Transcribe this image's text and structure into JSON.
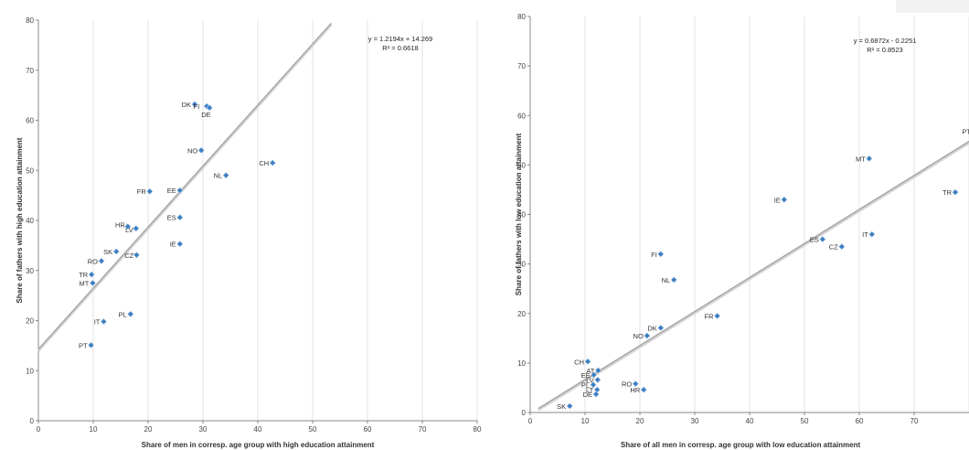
{
  "chart_data": [
    {
      "type": "scatter",
      "title": "",
      "xlabel": "Share of men in corresp. age group with high  education attainment",
      "ylabel": "Share of fathers with high education attainment",
      "xlim": [
        0,
        80
      ],
      "ylim": [
        0,
        80
      ],
      "xticks": [
        0,
        10,
        20,
        30,
        40,
        50,
        60,
        70,
        80
      ],
      "yticks": [
        0,
        10,
        20,
        30,
        40,
        50,
        60,
        70,
        80
      ],
      "grid": "x-vertical",
      "trendline": {
        "slope": 1.2194,
        "intercept": 14.269,
        "x_range": [
          0,
          53.4
        ]
      },
      "equation_lines": [
        "y = 1.2194x + 14.269",
        "R² = 0.6618"
      ],
      "marker_color": "#3b7fc4",
      "points": [
        {
          "label": "DK",
          "x": 28.5,
          "y": 63.2
        },
        {
          "label": "FI",
          "x": 30.7,
          "y": 62.8
        },
        {
          "label": "DE",
          "x": 31.2,
          "y": 62.5
        },
        {
          "label": "NO",
          "x": 29.7,
          "y": 54.0
        },
        {
          "label": "CH",
          "x": 42.7,
          "y": 51.5
        },
        {
          "label": "NL",
          "x": 34.2,
          "y": 49.0
        },
        {
          "label": "FR",
          "x": 20.3,
          "y": 45.8
        },
        {
          "label": "EE",
          "x": 25.8,
          "y": 46.0
        },
        {
          "label": "ES",
          "x": 25.8,
          "y": 40.6
        },
        {
          "label": "HR",
          "x": 16.3,
          "y": 38.8
        },
        {
          "label": "LV",
          "x": 17.8,
          "y": 38.4
        },
        {
          "label": "IE",
          "x": 25.8,
          "y": 35.3
        },
        {
          "label": "SK",
          "x": 14.2,
          "y": 33.8
        },
        {
          "label": "CZ",
          "x": 17.9,
          "y": 33.1
        },
        {
          "label": "RO",
          "x": 11.5,
          "y": 31.9
        },
        {
          "label": "TR",
          "x": 9.7,
          "y": 29.2
        },
        {
          "label": "MT",
          "x": 9.9,
          "y": 27.5
        },
        {
          "label": "PL",
          "x": 16.8,
          "y": 21.3
        },
        {
          "label": "IT",
          "x": 11.9,
          "y": 19.8
        },
        {
          "label": "PT",
          "x": 9.6,
          "y": 15.1
        }
      ]
    },
    {
      "type": "scatter",
      "title": "",
      "xlabel": "Share of all men in corresp. age group with low education attainment",
      "ylabel": "Share of fathers with low education attainment",
      "xlim": [
        0,
        80
      ],
      "ylim": [
        0,
        80
      ],
      "xticks": [
        0,
        10,
        20,
        30,
        40,
        50,
        60,
        70,
        80
      ],
      "yticks": [
        0,
        10,
        20,
        30,
        40,
        50,
        60,
        70,
        80
      ],
      "grid": "x-vertical",
      "trendline": {
        "slope": 0.6872,
        "intercept": -0.2251,
        "x_range": [
          1.5,
          81
        ]
      },
      "equation_lines": [
        "y = 0.6872x - 0.2251",
        "R² = 0.8523"
      ],
      "marker_color": "#3b7fc4",
      "points": [
        {
          "label": "PT",
          "x": 81.0,
          "y": 56.8
        },
        {
          "label": "MT",
          "x": 61.8,
          "y": 51.3
        },
        {
          "label": "TR",
          "x": 77.5,
          "y": 44.5
        },
        {
          "label": "IE",
          "x": 46.3,
          "y": 43.0
        },
        {
          "label": "IT",
          "x": 62.3,
          "y": 36.0
        },
        {
          "label": "ES",
          "x": 53.3,
          "y": 35.0
        },
        {
          "label": "CZ",
          "x": 56.8,
          "y": 33.5
        },
        {
          "label": "FI",
          "x": 23.8,
          "y": 32.0
        },
        {
          "label": "NL",
          "x": 26.2,
          "y": 26.8
        },
        {
          "label": "FR",
          "x": 34.1,
          "y": 19.5
        },
        {
          "label": "DK",
          "x": 23.8,
          "y": 17.1
        },
        {
          "label": "NO",
          "x": 21.3,
          "y": 15.5
        },
        {
          "label": "CH",
          "x": 10.5,
          "y": 10.3
        },
        {
          "label": "AT",
          "x": 12.4,
          "y": 8.5
        },
        {
          "label": "EE",
          "x": 11.6,
          "y": 7.6
        },
        {
          "label": "LV",
          "x": 12.3,
          "y": 6.6
        },
        {
          "label": "PL",
          "x": 11.5,
          "y": 5.6
        },
        {
          "label": "LT",
          "x": 12.2,
          "y": 4.6
        },
        {
          "label": "DE",
          "x": 12.0,
          "y": 3.7
        },
        {
          "label": "RO",
          "x": 19.2,
          "y": 5.8
        },
        {
          "label": "HR",
          "x": 20.7,
          "y": 4.6
        },
        {
          "label": "SK",
          "x": 7.2,
          "y": 1.3
        }
      ]
    }
  ]
}
